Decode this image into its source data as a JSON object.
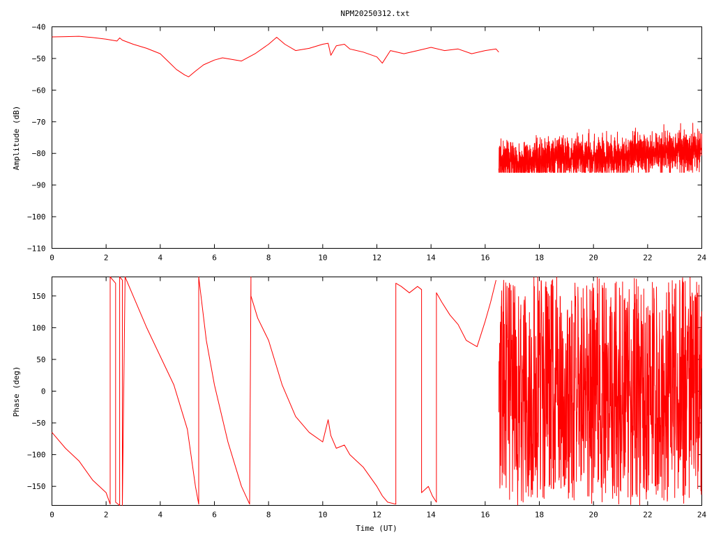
{
  "chart_data": [
    {
      "type": "line",
      "title": "NPM20250312.txt",
      "xlabel": "",
      "ylabel": "Amplitude (dB)",
      "xlim": [
        0,
        24
      ],
      "ylim": [
        -110,
        -40
      ],
      "xticks": [
        "0",
        "2",
        "4",
        "6",
        "8",
        "10",
        "12",
        "14",
        "16",
        "18",
        "20",
        "22",
        "24"
      ],
      "yticks": [
        "-40",
        "-50",
        "-60",
        "-70",
        "-80",
        "-90",
        "-100",
        "-110"
      ],
      "grid": false,
      "color": "#ff0000",
      "series": [
        {
          "x": [
            0,
            0.5,
            1,
            1.5,
            2,
            2.4,
            2.5,
            2.6,
            3,
            3.5,
            4,
            4.3,
            4.6,
            4.9,
            5.05,
            5.3,
            5.6,
            6,
            6.3,
            7,
            7.5,
            8,
            8.3,
            8.6,
            9,
            9.5,
            10,
            10.2,
            10.3,
            10.5,
            10.8,
            11,
            11.5,
            12,
            12.2,
            12.5,
            13,
            13.5,
            14,
            14.5,
            15,
            15.5,
            16,
            16.4,
            16.5
          ],
          "y": [
            -43.2,
            -43.1,
            -43.0,
            -43.4,
            -43.9,
            -44.5,
            -43.5,
            -44.2,
            -45.5,
            -46.8,
            -48.5,
            -51,
            -53.5,
            -55.2,
            -55.8,
            -54,
            -52,
            -50.5,
            -49.8,
            -50.8,
            -48.5,
            -45.5,
            -43.3,
            -45.5,
            -47.5,
            -46.8,
            -45.5,
            -45.2,
            -49,
            -46,
            -45.5,
            -47,
            -48,
            -49.5,
            -51.5,
            -47.5,
            -48.5,
            -47.5,
            -46.5,
            -47.5,
            -47.0,
            -48.5,
            -47.5,
            -47,
            -48.0
          ]
        }
      ],
      "noise_segment": {
        "x_start": 16.5,
        "x_end": 24,
        "y_from": -83.0,
        "y_to": -79.0,
        "low": -86,
        "high": -68
      }
    },
    {
      "type": "line",
      "title": "",
      "xlabel": "Time (UT)",
      "ylabel": "Phase (deg)",
      "xlim": [
        0,
        24
      ],
      "ylim": [
        -180,
        180
      ],
      "xticks": [
        "0",
        "2",
        "4",
        "6",
        "8",
        "10",
        "12",
        "14",
        "16",
        "18",
        "20",
        "22",
        "24"
      ],
      "yticks": [
        "150",
        "100",
        "50",
        "0",
        "-50",
        "-100",
        "-150"
      ],
      "grid": false,
      "color": "#ff0000",
      "series": [
        {
          "x": [
            0,
            0.5,
            1,
            1.5,
            2.0,
            2.15,
            2.15,
            2.35,
            2.35,
            2.5,
            2.5,
            2.6,
            2.6,
            2.7,
            3.0,
            3.5,
            4.0,
            4.5,
            5.0,
            5.3,
            5.42,
            5.42,
            5.7,
            6.0,
            6.5,
            7.0,
            7.3,
            7.35,
            7.35,
            7.6,
            8.0,
            8.5,
            9.0,
            9.5,
            10.0,
            10.2,
            10.3,
            10.5,
            10.8,
            11.0,
            11.5,
            12.0,
            12.2,
            12.4,
            12.7,
            12.7,
            12.9,
            13.2,
            13.5,
            13.65,
            13.65,
            13.9,
            14.05,
            14.2,
            14.2,
            14.4,
            14.7,
            15.0,
            15.3,
            15.5,
            15.7,
            16.0,
            16.2,
            16.4
          ],
          "y": [
            -65,
            -90,
            -110,
            -140,
            -160,
            -178,
            180,
            170,
            -175,
            -180,
            180,
            175,
            -180,
            180,
            150,
            100,
            55,
            10,
            -60,
            -150,
            -178,
            180,
            80,
            10,
            -80,
            -150,
            -178,
            180,
            150,
            115,
            80,
            10,
            -40,
            -65,
            -80,
            -45,
            -70,
            -90,
            -85,
            -100,
            -120,
            -150,
            -165,
            -175,
            -178,
            170,
            165,
            155,
            165,
            160,
            -160,
            -150,
            -165,
            -175,
            155,
            140,
            120,
            105,
            80,
            75,
            70,
            110,
            140,
            175
          ]
        }
      ],
      "noise_segment": {
        "x_start": 16.5,
        "x_end": 24,
        "low": -180,
        "high": 180
      }
    }
  ]
}
